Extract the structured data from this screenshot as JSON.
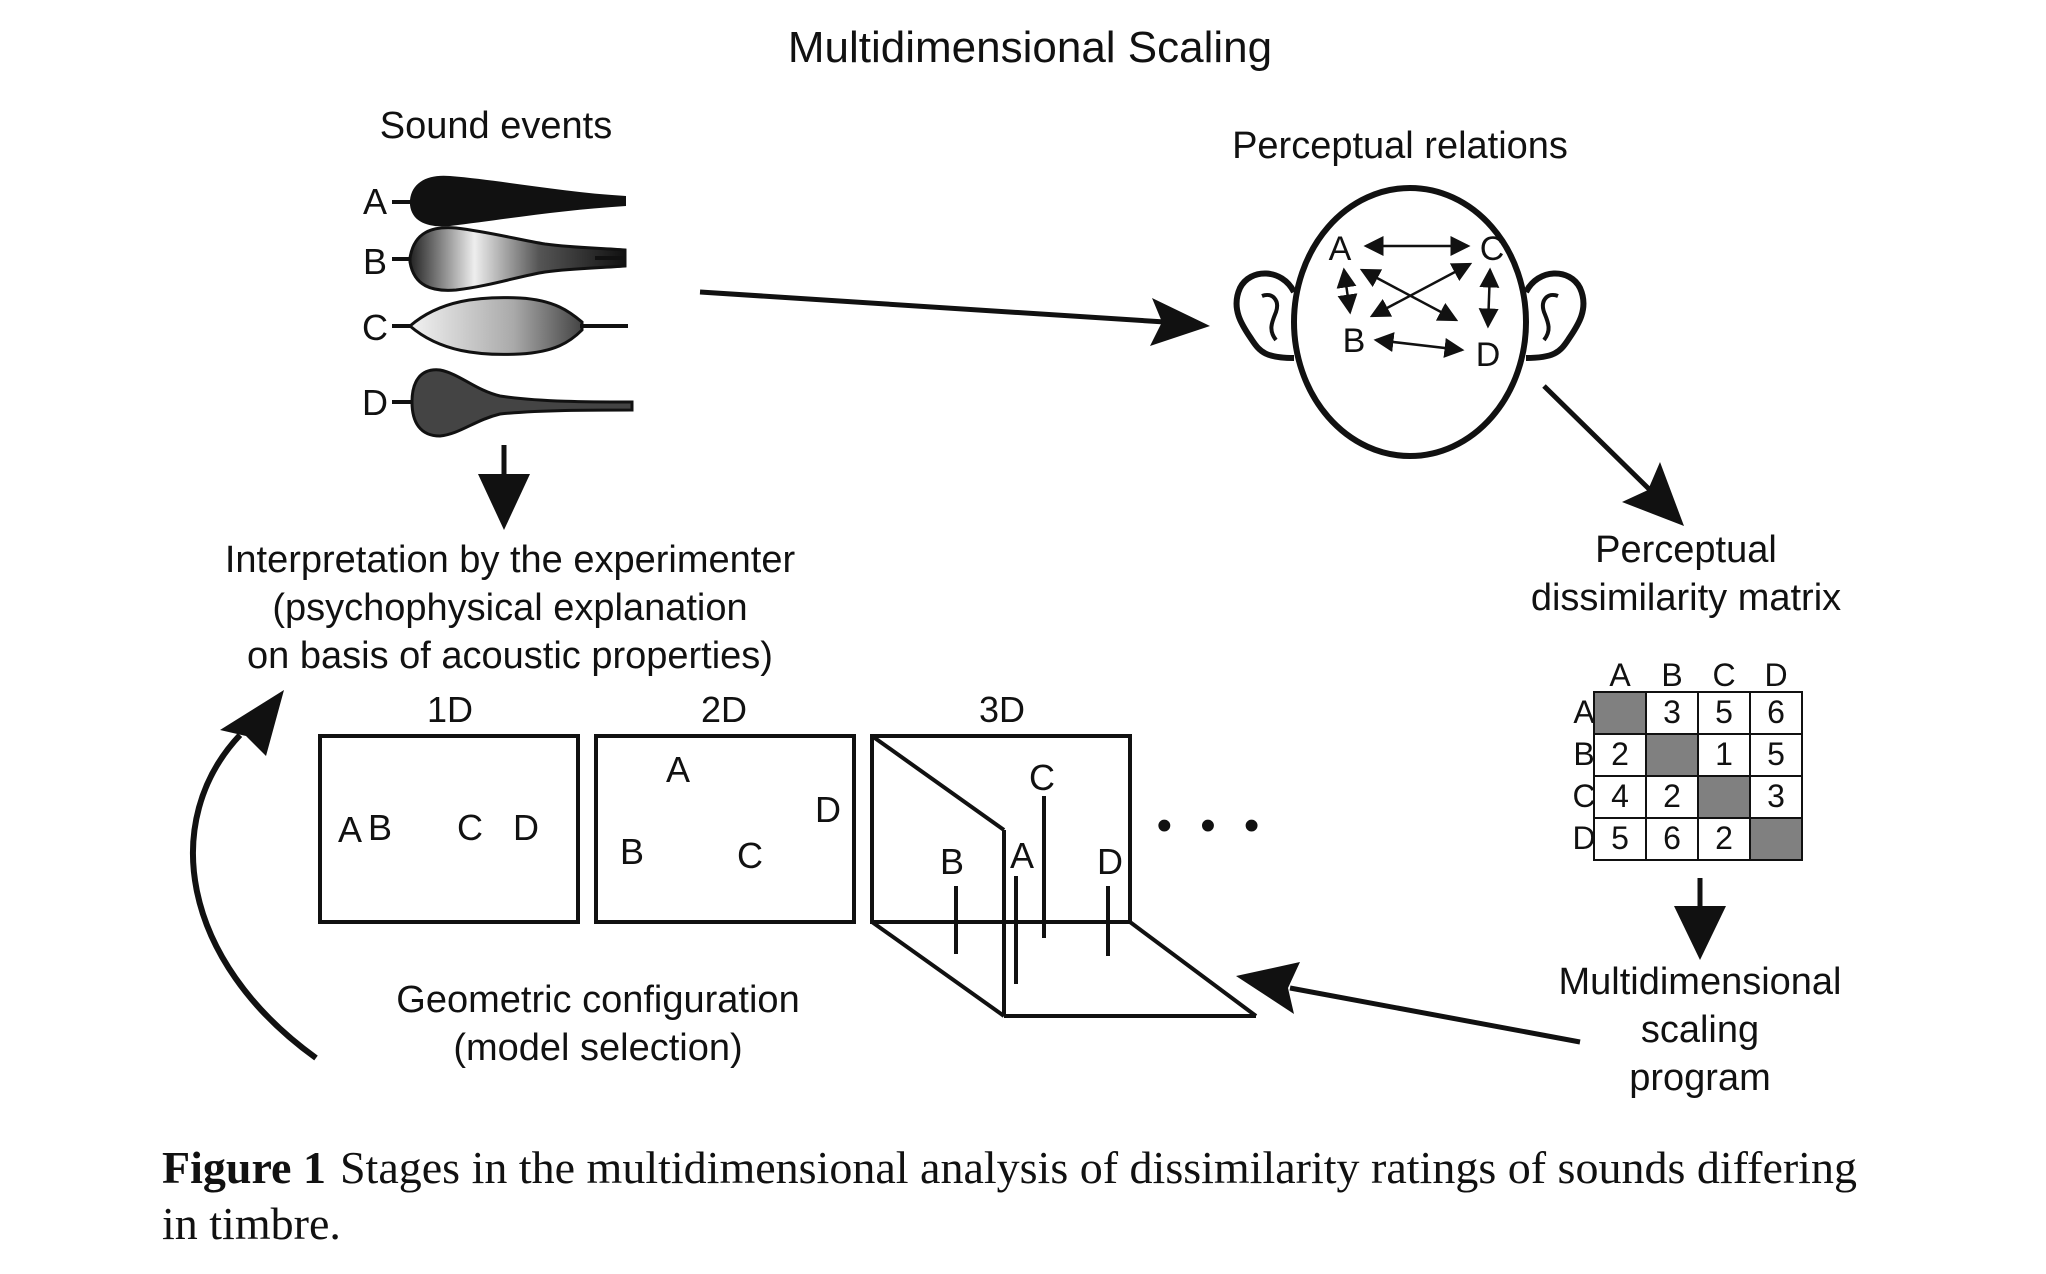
{
  "title": "Multidimensional Scaling",
  "sound_events": {
    "heading": "Sound events",
    "labels": [
      "A",
      "B",
      "C",
      "D"
    ]
  },
  "perceptual_relations": {
    "heading": "Perceptual relations",
    "labels": [
      "A",
      "B",
      "C",
      "D"
    ]
  },
  "matrix": {
    "heading_line1": "Perceptual",
    "heading_line2": "dissimilarity matrix",
    "columns": [
      "A",
      "B",
      "C",
      "D"
    ],
    "rows": [
      {
        "label": "A",
        "cells": [
          "",
          "3",
          "5",
          "6"
        ]
      },
      {
        "label": "B",
        "cells": [
          "2",
          "",
          "1",
          "5"
        ]
      },
      {
        "label": "C",
        "cells": [
          "4",
          "2",
          "",
          "3"
        ]
      },
      {
        "label": "D",
        "cells": [
          "5",
          "6",
          "2",
          ""
        ]
      }
    ],
    "diagonal_color": "#808080"
  },
  "mds_program": {
    "line1": "Multidimensional",
    "line2": "scaling",
    "line3": "program"
  },
  "interpretation": {
    "line1": "Interpretation by the experimenter",
    "line2": "(psychophysical explanation",
    "line3": "on basis of acoustic properties)"
  },
  "geometric": {
    "line1": "Geometric configuration",
    "line2": "(model selection)",
    "panel_1d": {
      "label": "1D",
      "points": [
        "A",
        "B",
        "C",
        "D"
      ]
    },
    "panel_2d": {
      "label": "2D",
      "points": [
        "A",
        "B",
        "C",
        "D"
      ]
    },
    "panel_3d": {
      "label": "3D",
      "points": [
        "B",
        "A",
        "C",
        "D"
      ]
    },
    "ellipsis": "• • •"
  },
  "caption": {
    "label": "Figure 1",
    "text": "Stages in the multidimensional analysis of dissimilarity ratings of sounds differing in timbre."
  }
}
